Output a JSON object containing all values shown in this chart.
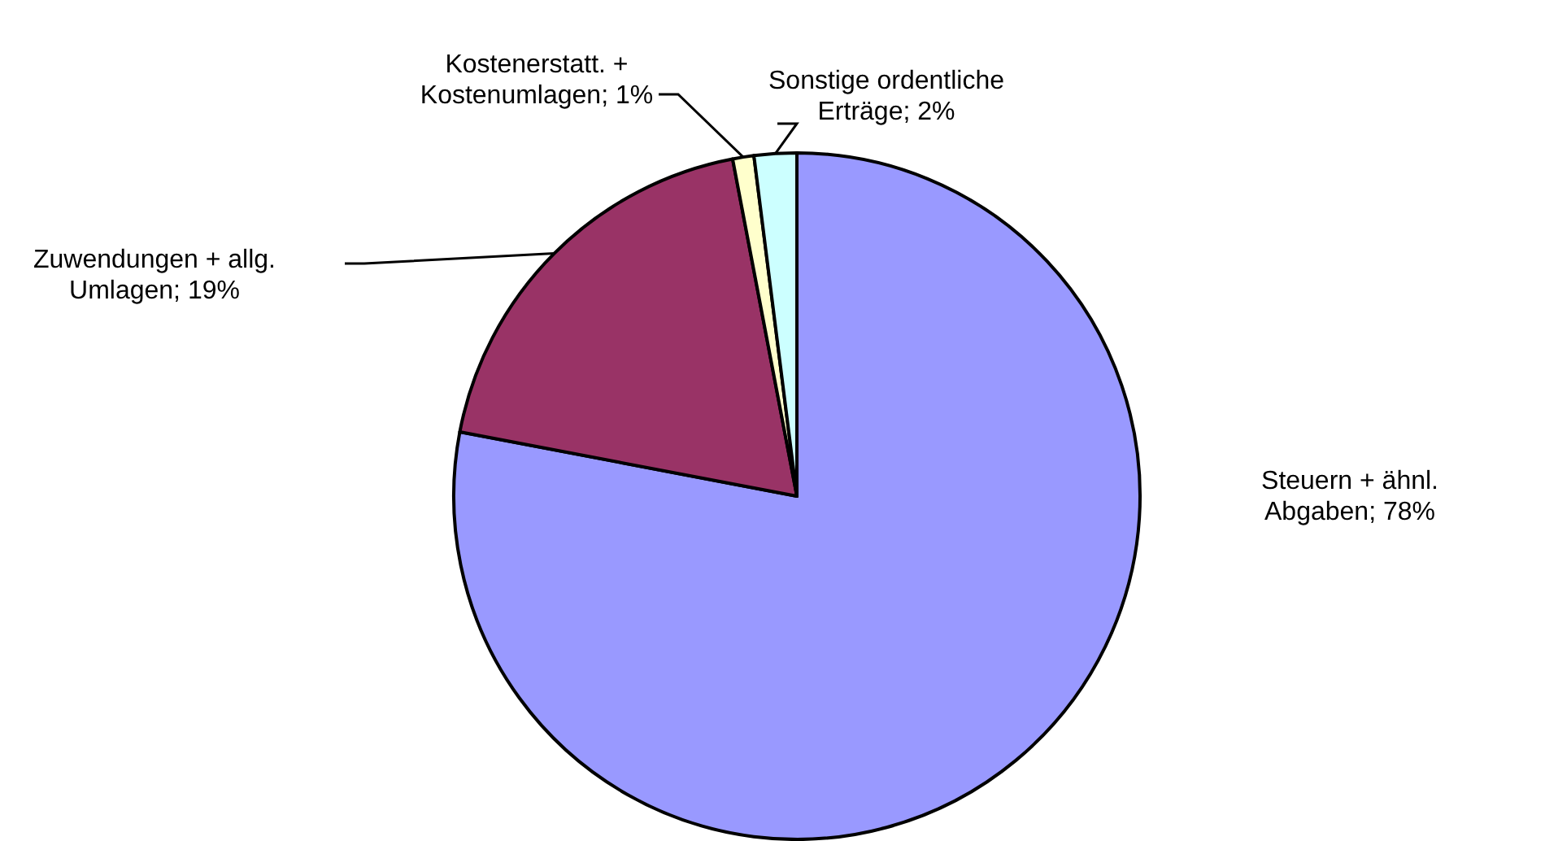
{
  "chart_data": {
    "type": "pie",
    "categories": [
      "Steuern + ähnl.\nAbgaben",
      "Zuwendungen + allg.\nUmlagen",
      "Kostenerstatt. +\nKostenumlagen",
      "Sonstige ordentliche\nErträge"
    ],
    "values": [
      78,
      19,
      1,
      2
    ],
    "value_labels": [
      "78%",
      "19%",
      "1%",
      "2%"
    ],
    "colors": [
      "#9999ff",
      "#993366",
      "#ffffcc",
      "#ccffff"
    ]
  }
}
